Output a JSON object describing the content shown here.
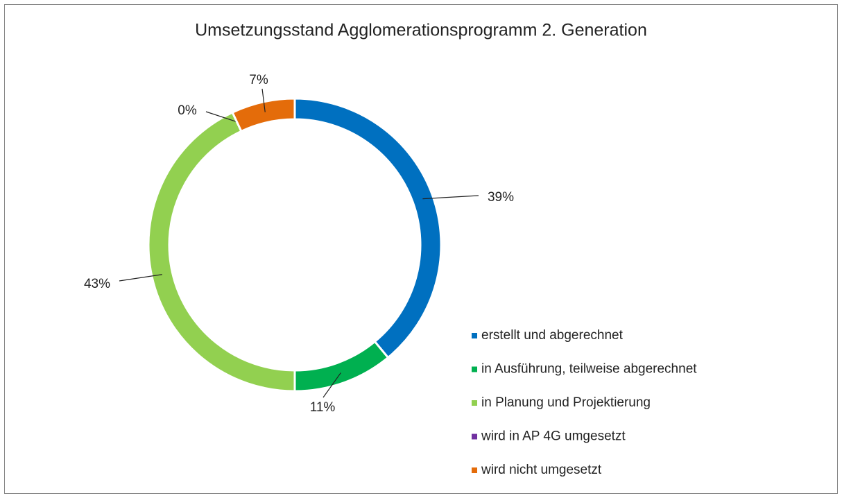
{
  "chart_data": {
    "type": "donut",
    "title": "Umsetzungsstand Agglomerationsprogramm 2. Generation",
    "categories": [
      "erstellt und abgerechnet",
      "in Ausführung, teilweise abgerechnet",
      "in Planung und Projektierung",
      "wird in AP 4G umgesetzt",
      "wird nicht umgesetzt"
    ],
    "values": [
      39,
      11,
      43,
      0,
      7
    ],
    "value_labels": [
      "39%",
      "11%",
      "43%",
      "0%",
      "7%"
    ],
    "colors": [
      "#0070c0",
      "#00b050",
      "#92d050",
      "#7030a0",
      "#e46c0a"
    ],
    "legend": "right"
  }
}
